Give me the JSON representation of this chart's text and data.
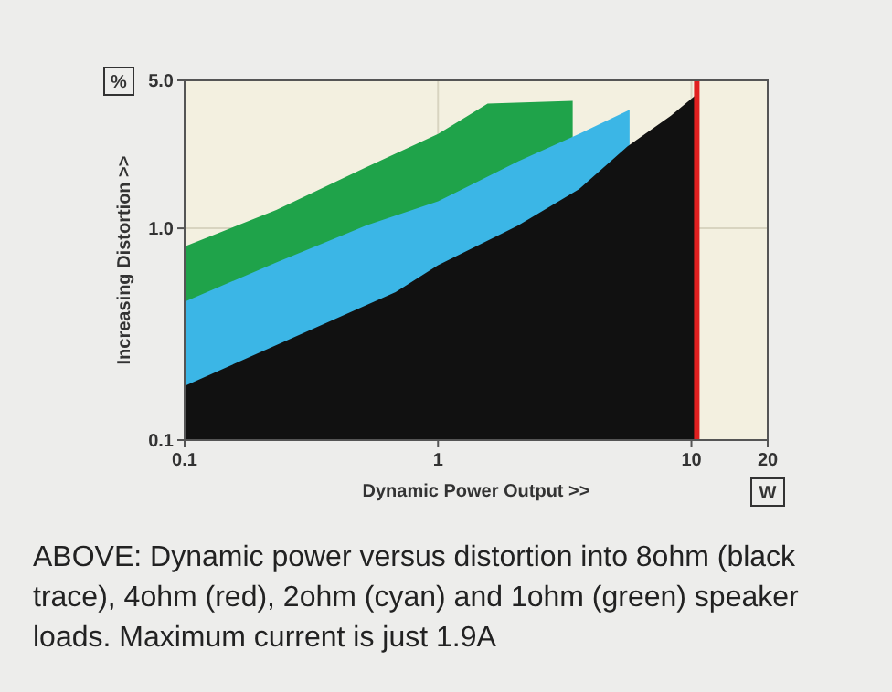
{
  "chart_data": {
    "type": "area",
    "xlabel": "Dynamic Power Output >>",
    "ylabel": "Increasing Distortion >>",
    "log": "xy",
    "grid": true,
    "xlim": [
      0.1,
      20
    ],
    "ylim": [
      0.1,
      5
    ],
    "xticks": [
      0.1,
      1,
      10,
      20
    ],
    "yticks": [
      0.1,
      {
        "value": 1,
        "label": "1.0"
      },
      {
        "value": 5,
        "label": "5.0"
      }
    ],
    "series": [
      {
        "color": "#1fa34a",
        "x": [
          0.1,
          0.23,
          0.52,
          1,
          1.57,
          3.4
        ],
        "values": [
          0.82,
          1.22,
          1.94,
          2.79,
          3.88,
          4.0
        ]
      },
      {
        "color": "#3bb6e6",
        "x": [
          0.1,
          0.23,
          0.52,
          1,
          2.07,
          3.6,
          5.7
        ],
        "values": [
          0.45,
          0.69,
          1.03,
          1.34,
          2.07,
          2.79,
          3.63
        ]
      },
      {
        "color": "#111111",
        "x": [
          0.1,
          0.68,
          1,
          2.07,
          3.6,
          5.6,
          8.3,
          10.5
        ],
        "values": [
          0.18,
          0.5,
          0.67,
          1.03,
          1.53,
          2.44,
          3.4,
          4.3
        ]
      },
      {
        "type": "line",
        "color": "#e02020",
        "x": [
          10.5,
          10.5
        ],
        "values": [
          0.1,
          5
        ]
      }
    ],
    "annotations": [
      "%",
      "W",
      "ABOVE: Dynamic power versus distortion into 8ohm (black trace), 4ohm (red), 2ohm (cyan) and 1ohm (green) speaker loads. Maximum current is just 1.9A"
    ]
  }
}
